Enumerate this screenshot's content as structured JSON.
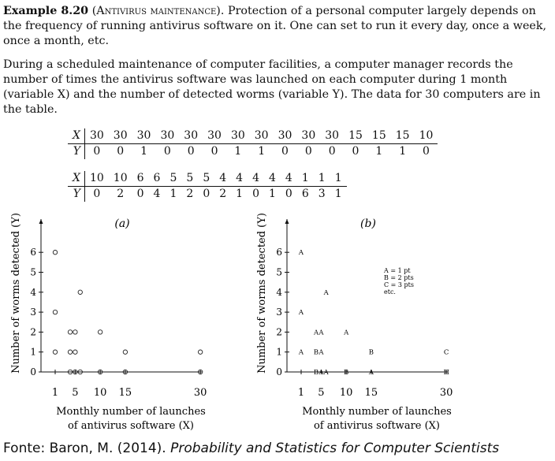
{
  "example": {
    "label": "Example 8.20",
    "topic": "(Antivirus maintenance).",
    "text1": " Protection of a personal computer largely depends on the frequency of running antivirus software on it. One can set to run it every day, once a week, once a month, etc.",
    "text2": "During a scheduled maintenance of computer facilities, a computer manager records the number of times the antivirus software was launched on each computer during 1 month (variable X) and the number of detected worms (variable Y). The data for 30 computers are in the table."
  },
  "table": {
    "row_labels": [
      "X",
      "Y"
    ],
    "block1": {
      "x": [
        30,
        30,
        30,
        30,
        30,
        30,
        30,
        30,
        30,
        30,
        30,
        15,
        15,
        15,
        10
      ],
      "y": [
        0,
        0,
        1,
        0,
        0,
        0,
        1,
        1,
        0,
        0,
        0,
        0,
        1,
        1,
        0
      ]
    },
    "block2": {
      "x": [
        10,
        10,
        6,
        6,
        5,
        5,
        5,
        4,
        4,
        4,
        4,
        4,
        1,
        1,
        1
      ],
      "y": [
        0,
        2,
        0,
        4,
        1,
        2,
        0,
        2,
        1,
        0,
        1,
        0,
        6,
        3,
        1
      ]
    }
  },
  "chart_data": [
    {
      "type": "scatter",
      "title": "(a)",
      "xlabel": "Monthly number of launches of antivirus software (X)",
      "ylabel": "Number of worms detected (Y)",
      "xticks": [
        1,
        5,
        10,
        15,
        30
      ],
      "yticks": [
        0,
        1,
        2,
        3,
        4,
        5,
        6
      ],
      "marker": "o",
      "points": [
        [
          1,
          6
        ],
        [
          1,
          3
        ],
        [
          1,
          1
        ],
        [
          4,
          2
        ],
        [
          4,
          1
        ],
        [
          4,
          0
        ],
        [
          5,
          2
        ],
        [
          5,
          1
        ],
        [
          5,
          0
        ],
        [
          6,
          4
        ],
        [
          6,
          0
        ],
        [
          10,
          2
        ],
        [
          10,
          0
        ],
        [
          15,
          1
        ],
        [
          15,
          0
        ],
        [
          30,
          1
        ],
        [
          30,
          0
        ]
      ]
    },
    {
      "type": "scatter",
      "title": "(b)",
      "xlabel": "Monthly number of launches of antivirus software (X)",
      "ylabel": "Number of worms detected (Y)",
      "xticks": [
        1,
        5,
        10,
        15,
        30
      ],
      "yticks": [
        0,
        1,
        2,
        3,
        4,
        5,
        6
      ],
      "legend": [
        "A = 1 pt",
        "B = 2 pts",
        "C = 3 pts",
        "etc."
      ],
      "points": [
        {
          "x": 1,
          "y": 6,
          "label": "A"
        },
        {
          "x": 1,
          "y": 3,
          "label": "A"
        },
        {
          "x": 1,
          "y": 1,
          "label": "A"
        },
        {
          "x": 4,
          "y": 2,
          "label": "A"
        },
        {
          "x": 5,
          "y": 2,
          "label": "A"
        },
        {
          "x": 4,
          "y": 1,
          "label": "B"
        },
        {
          "x": 5,
          "y": 1,
          "label": "A"
        },
        {
          "x": 4,
          "y": 0,
          "label": "B"
        },
        {
          "x": 5,
          "y": 0,
          "label": "A"
        },
        {
          "x": 6,
          "y": 0,
          "label": "A"
        },
        {
          "x": 6,
          "y": 4,
          "label": "A"
        },
        {
          "x": 10,
          "y": 2,
          "label": "A"
        },
        {
          "x": 10,
          "y": 0,
          "label": "B"
        },
        {
          "x": 15,
          "y": 1,
          "label": "B"
        },
        {
          "x": 15,
          "y": 0,
          "label": "A"
        },
        {
          "x": 30,
          "y": 1,
          "label": "C"
        },
        {
          "x": 30,
          "y": 0,
          "label": "H"
        }
      ]
    }
  ],
  "caption": {
    "prefix": "Fonte: Baron, M. (2014). ",
    "title": "Probability and Statistics for Computer Scientists"
  }
}
